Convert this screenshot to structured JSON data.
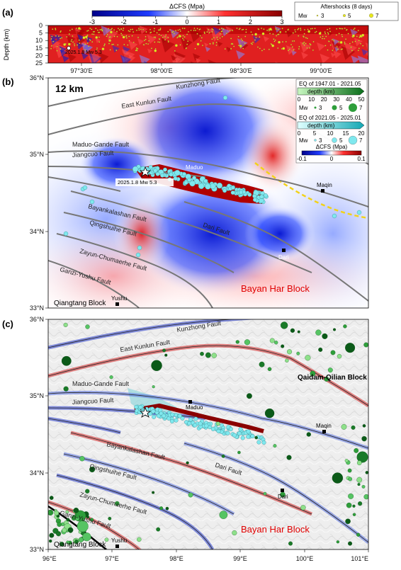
{
  "panel_a": {
    "label": "(a)",
    "colorbar": {
      "title": "ΔCFS (Mpa)",
      "ticks": [
        "-3",
        "-2",
        "-1",
        "0",
        "1",
        "2",
        "3"
      ]
    },
    "legend": {
      "title": "Aftershocks (8 days)",
      "mw_label": "Mw",
      "sizes": [
        "3",
        "5",
        "7"
      ]
    },
    "ylabel": "Depth (km)",
    "yticks": [
      "0",
      "5",
      "10",
      "15",
      "20",
      "25"
    ],
    "xticks": [
      "97°30'E",
      "98°00'E",
      "98°30'E",
      "99°00'E"
    ],
    "event_label": "2025.1.8 Mw 5.3"
  },
  "panel_b": {
    "label": "(b)",
    "depth_tag": "12 km",
    "yticks": [
      "36°N",
      "35°N",
      "34°N",
      "33°N"
    ],
    "faults": [
      "Kunzhong Fault",
      "East Kunlun Fault",
      "Maduo-Gande Fault",
      "Jiangcuo Fault",
      "Bayankalashan Fault",
      "Qingshuihe Fault",
      "Zayun-Chumaerhe Fault",
      "Ganzi-Yushu Fault",
      "Dari Fault"
    ],
    "towns": [
      "Maduo",
      "Maqin",
      "Dari",
      "Yushu"
    ],
    "event_label": "2025.1.8 Mw 5.3",
    "block_red": "Bayan Har Block",
    "block_black": "Qiangtang Block",
    "legend": {
      "title1": "EQ of 1947.01 - 2021.05",
      "depth1": "depth (km)",
      "depth1_ticks": [
        "0",
        "10",
        "20",
        "30",
        "40",
        "50"
      ],
      "mw_label": "Mw",
      "sizes": [
        "3",
        "5",
        "7"
      ],
      "title2": "EQ of 2021.05 - 2025.01",
      "depth2": "depth (km)",
      "depth2_ticks": [
        "0",
        "5",
        "10",
        "15",
        "20"
      ],
      "cfs_title": "ΔCFS (Mpa)",
      "cfs_ticks": [
        "-0.1",
        "0",
        "0.1"
      ]
    }
  },
  "panel_c": {
    "label": "(c)",
    "yticks": [
      "36°N",
      "35°N",
      "34°N",
      "33°N"
    ],
    "xticks": [
      "96°E",
      "97°E",
      "98°E",
      "99°E",
      "100°E",
      "101°E"
    ],
    "faults": [
      "Kunzhong Fault",
      "East Kunlun Fault",
      "Maduo-Gande Fault",
      "Jiangcuo Fault",
      "Bayankalashan Fault",
      "Qingshuihe Fault",
      "Zayun-Chumaerhe Fault",
      "Ganzi-Yushu Fault",
      "Dari Fault"
    ],
    "towns": [
      "Maduo",
      "Maqin",
      "Dari",
      "Yushu"
    ],
    "block_qq": "Qaidam-Qilian Block",
    "block_red": "Bayan Har Block",
    "block_black": "Qiangtang Block"
  },
  "colors": {
    "positive": "#c40000",
    "negative": "#0018c8",
    "aftershock": "#e8e81a",
    "eq_recent": "#7fe8ee",
    "eq_historic": "#2e9e3a"
  }
}
